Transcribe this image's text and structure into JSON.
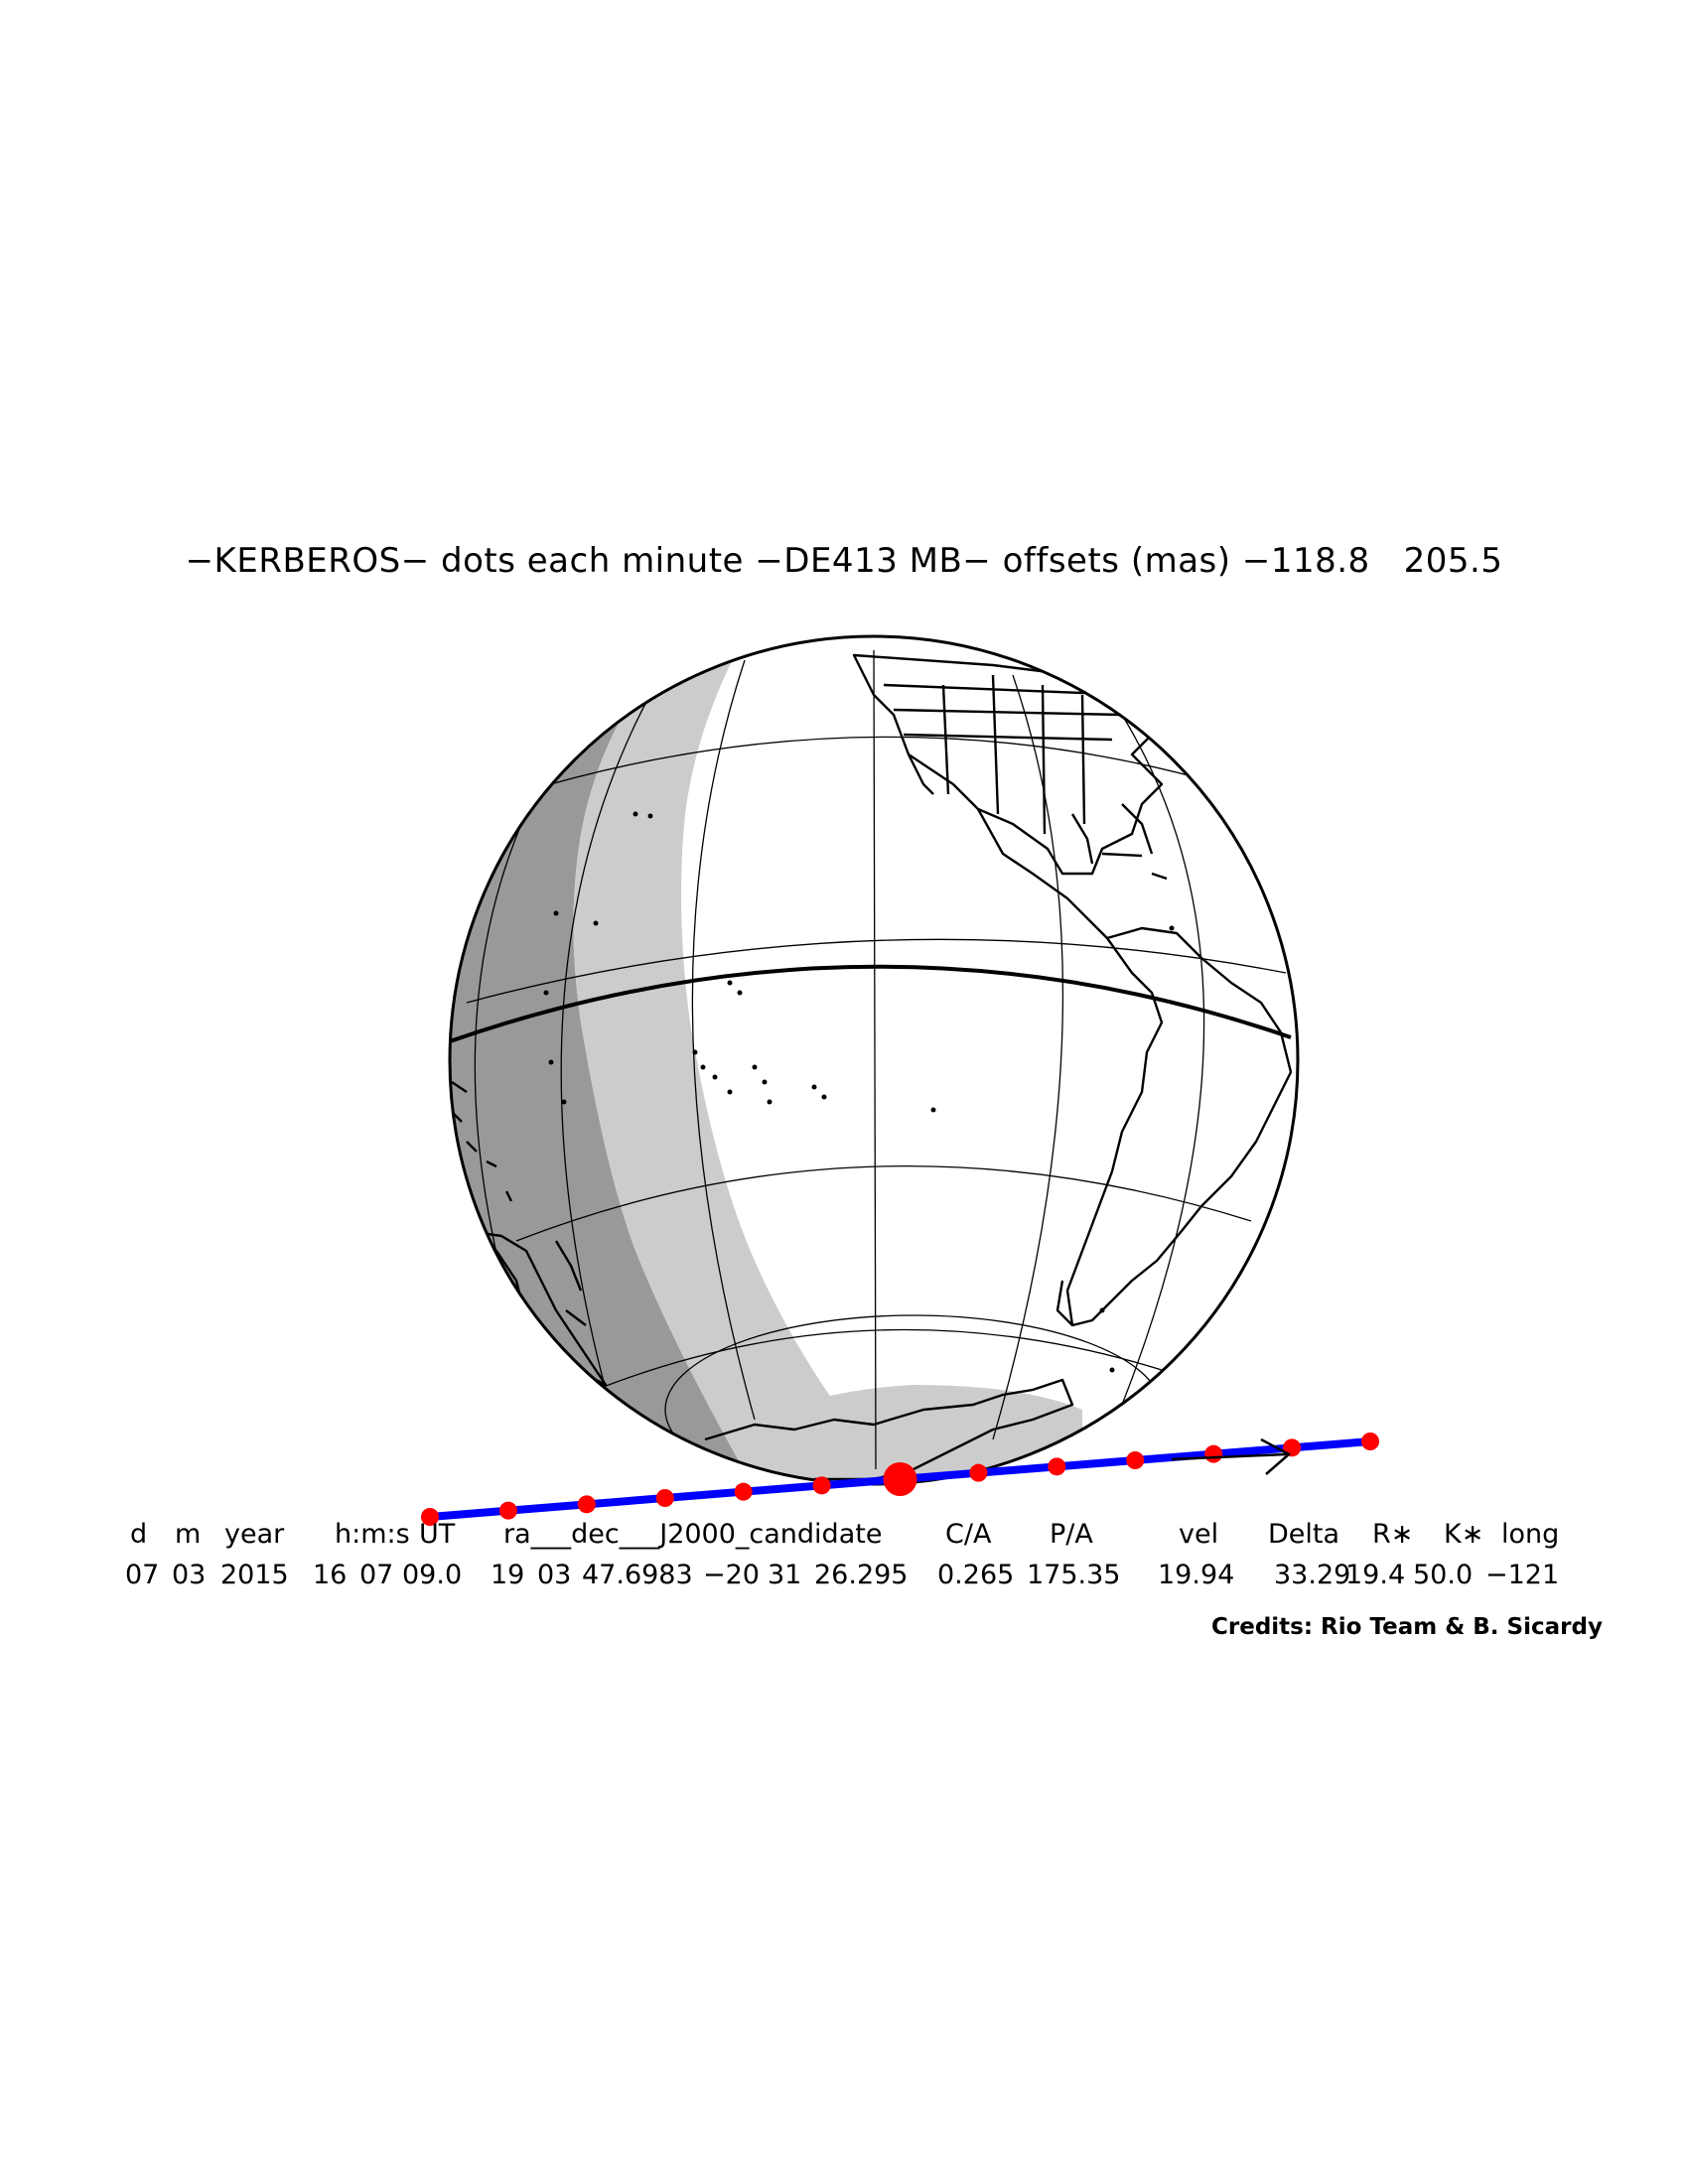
{
  "title": "−KERBEROS− dots each minute −DE413 MB− offsets (mas) −118.8   205.5",
  "header_cells": [
    "d",
    "m",
    "year",
    "h:m:s",
    "UT",
    "ra___dec___J2000_candidate",
    "C/A",
    "P/A",
    "vel",
    "Delta",
    "R∗",
    "K∗",
    "long"
  ],
  "value_cells": [
    "07",
    "03",
    "2015",
    "16",
    "07",
    "09.0",
    "19",
    "03",
    "47.6983",
    "−20",
    "31",
    "26.295",
    "0.265",
    "175.35",
    "19.94",
    "33.29",
    "19.4",
    "50.0",
    "−121"
  ],
  "credits": "Credits: Rio Team & B. Sicardy",
  "colors": {
    "track_line": "#0000ff",
    "track_dots": "#ff0000",
    "night": "#999999",
    "twilight": "#cccccc",
    "day": "#ffffff",
    "outline": "#000000"
  },
  "track": {
    "dot_count": 13,
    "closest_approach_dot_index": 6,
    "direction_arrow": true
  }
}
